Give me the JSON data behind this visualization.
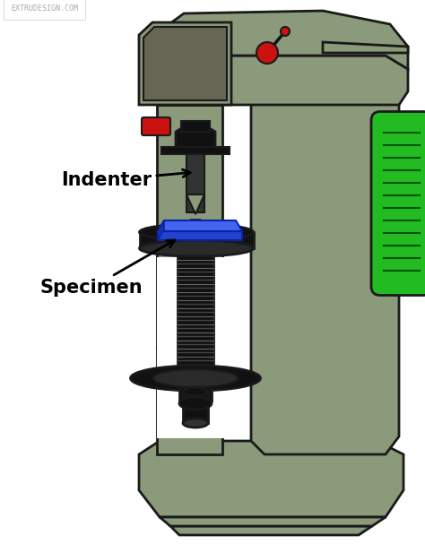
{
  "bg_color": "#ffffff",
  "machine_color": "#8a9a7a",
  "machine_edge": "#1a1a1a",
  "dark_color": "#111111",
  "dark2_color": "#222222",
  "red_color": "#cc1111",
  "green_color": "#22bb22",
  "blue_color": "#2244cc",
  "blue2_color": "#4466ee",
  "screen_color": "#666655",
  "label_indenter": "Indenter",
  "label_specimen": "Specimen",
  "watermark": "EXTRUDESIGN.COM",
  "label_fontsize": 15,
  "watermark_fontsize": 6
}
